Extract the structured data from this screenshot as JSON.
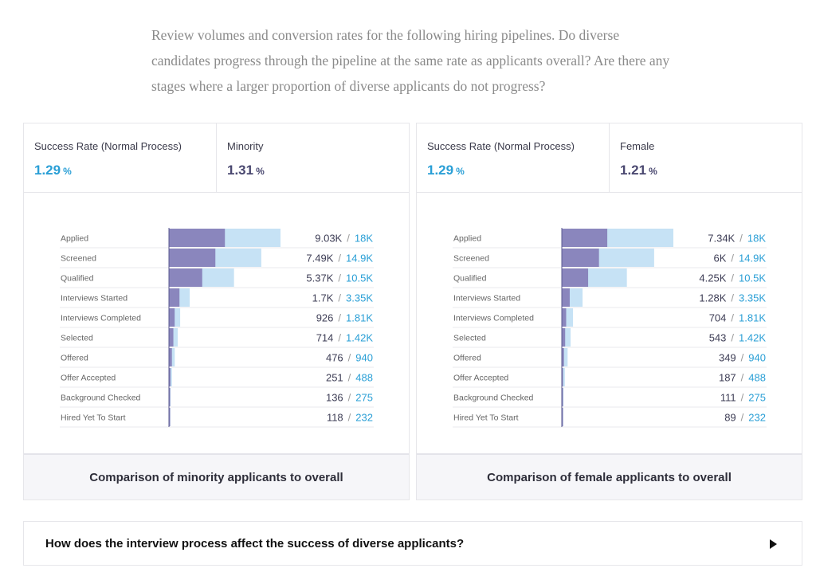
{
  "intro_text": "Review volumes and conversion rates for the following hiring pipelines. Do diverse candidates progress through the pipeline at the same rate as applicants overall? Are there any stages where a larger proportion of diverse applicants do not progress?",
  "colors": {
    "overall_bar": "#c6e2f5",
    "group_bar": "#8a86bd",
    "overall_text": "#2a9fd6",
    "group_text": "#4a4870"
  },
  "cards": [
    {
      "kpi_a": {
        "label": "Success Rate (Normal Process)",
        "value": "1.29",
        "unit": "%"
      },
      "kpi_b": {
        "label": "Minority",
        "value": "1.31",
        "unit": "%"
      },
      "caption": "Comparison of minority applicants to overall",
      "separator": "/",
      "chart_data": {
        "type": "bar",
        "orientation": "horizontal-funnel",
        "title": "Comparison of minority applicants to overall",
        "categories": [
          "Applied",
          "Screened",
          "Qualified",
          "Interviews Started",
          "Interviews Completed",
          "Selected",
          "Offered",
          "Offer Accepted",
          "Background Checked",
          "Hired Yet To Start"
        ],
        "series": [
          {
            "name": "Minority",
            "values": [
              9030,
              7490,
              5370,
              1700,
              926,
              714,
              476,
              251,
              136,
              118
            ],
            "labels": [
              "9.03K",
              "7.49K",
              "5.37K",
              "1.7K",
              "926",
              "714",
              "476",
              "251",
              "136",
              "118"
            ]
          },
          {
            "name": "Overall",
            "values": [
              18000,
              14900,
              10500,
              3350,
              1810,
              1420,
              940,
              488,
              275,
              232
            ],
            "labels": [
              "18K",
              "14.9K",
              "10.5K",
              "3.35K",
              "1.81K",
              "1.42K",
              "940",
              "488",
              "275",
              "232"
            ]
          }
        ]
      }
    },
    {
      "kpi_a": {
        "label": "Success Rate (Normal Process)",
        "value": "1.29",
        "unit": "%"
      },
      "kpi_b": {
        "label": "Female",
        "value": "1.21",
        "unit": "%"
      },
      "caption": "Comparison of female applicants to overall",
      "separator": "/",
      "chart_data": {
        "type": "bar",
        "orientation": "horizontal-funnel",
        "title": "Comparison of female applicants to overall",
        "categories": [
          "Applied",
          "Screened",
          "Qualified",
          "Interviews Started",
          "Interviews Completed",
          "Selected",
          "Offered",
          "Offer Accepted",
          "Background Checked",
          "Hired Yet To Start"
        ],
        "series": [
          {
            "name": "Female",
            "values": [
              7340,
              6000,
              4250,
              1280,
              704,
              543,
              349,
              187,
              111,
              89
            ],
            "labels": [
              "7.34K",
              "6K",
              "4.25K",
              "1.28K",
              "704",
              "543",
              "349",
              "187",
              "111",
              "89"
            ]
          },
          {
            "name": "Overall",
            "values": [
              18000,
              14900,
              10500,
              3350,
              1810,
              1420,
              940,
              488,
              275,
              232
            ],
            "labels": [
              "18K",
              "14.9K",
              "10.5K",
              "3.35K",
              "1.81K",
              "1.42K",
              "940",
              "488",
              "275",
              "232"
            ]
          }
        ]
      }
    }
  ],
  "question": {
    "text": "How does the interview process affect the success of diverse applicants?",
    "icon": "play-arrow-icon"
  }
}
